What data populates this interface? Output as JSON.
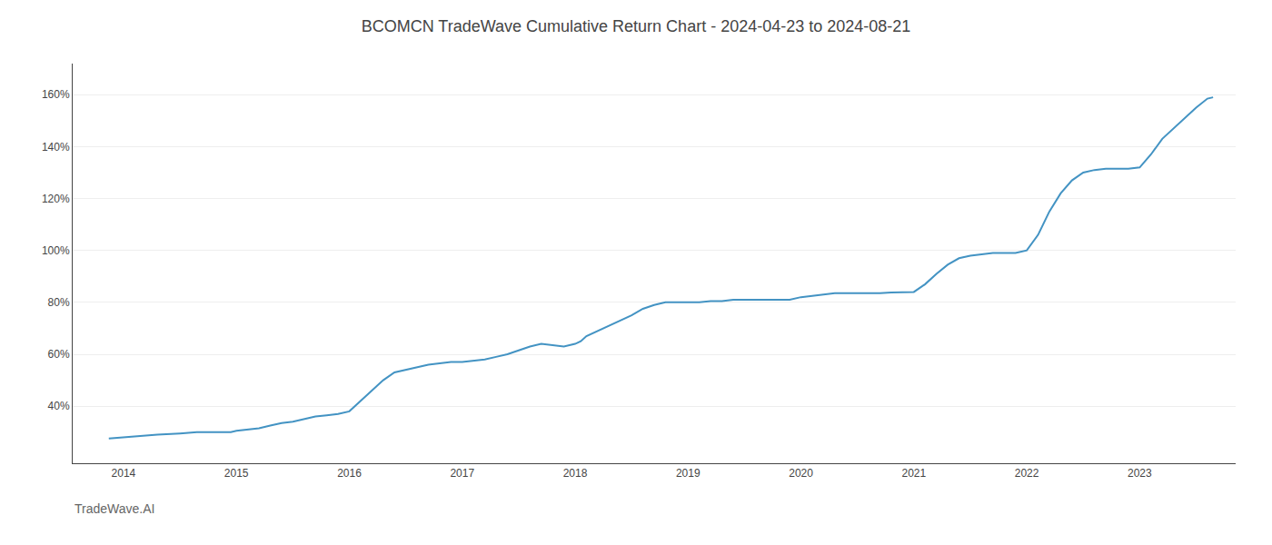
{
  "chart_data": {
    "type": "line",
    "title": "BCOMCN TradeWave Cumulative Return Chart - 2024-04-23 to 2024-08-21",
    "annotations": [
      "TradeWave.AI"
    ],
    "color": "#4393c3",
    "grid": true,
    "x": [
      2013.87,
      2014.0,
      2014.15,
      2014.3,
      2014.5,
      2014.65,
      2014.8,
      2014.95,
      2015.0,
      2015.1,
      2015.2,
      2015.3,
      2015.4,
      2015.5,
      2015.6,
      2015.7,
      2015.8,
      2015.9,
      2016.0,
      2016.1,
      2016.2,
      2016.3,
      2016.4,
      2016.5,
      2016.6,
      2016.7,
      2016.8,
      2016.9,
      2017.0,
      2017.1,
      2017.2,
      2017.3,
      2017.4,
      2017.5,
      2017.6,
      2017.7,
      2017.8,
      2017.9,
      2018.0,
      2018.05,
      2018.1,
      2018.2,
      2018.3,
      2018.4,
      2018.5,
      2018.6,
      2018.7,
      2018.8,
      2018.9,
      2019.0,
      2019.1,
      2019.2,
      2019.3,
      2019.4,
      2019.5,
      2019.6,
      2019.7,
      2019.8,
      2019.9,
      2020.0,
      2020.1,
      2020.2,
      2020.3,
      2020.4,
      2020.5,
      2020.6,
      2020.7,
      2020.8,
      2020.9,
      2021.0,
      2021.1,
      2021.2,
      2021.3,
      2021.4,
      2021.5,
      2021.6,
      2021.7,
      2021.8,
      2021.9,
      2022.0,
      2022.1,
      2022.2,
      2022.3,
      2022.4,
      2022.5,
      2022.6,
      2022.7,
      2022.8,
      2022.9,
      2023.0,
      2023.1,
      2023.2,
      2023.3,
      2023.4,
      2023.5,
      2023.6,
      2023.65
    ],
    "values": [
      27.5,
      28,
      28.5,
      29,
      29.5,
      30,
      30,
      30,
      30.5,
      31,
      31.5,
      32.5,
      33.5,
      34,
      35,
      36,
      36.5,
      37,
      38,
      42,
      46,
      50,
      53,
      54,
      55,
      56,
      56.5,
      57,
      57,
      57.5,
      58,
      59,
      60,
      61.5,
      63,
      64,
      63.5,
      63,
      64,
      65,
      67,
      69,
      71,
      73,
      75,
      77.5,
      79,
      80,
      80,
      80,
      80,
      80.5,
      80.5,
      81,
      81,
      81,
      81,
      81,
      81,
      82,
      82.5,
      83,
      83.5,
      83.5,
      83.5,
      83.5,
      83.5,
      83.8,
      84,
      84,
      87,
      91,
      94.5,
      97,
      98,
      98.5,
      99,
      99,
      99,
      100,
      106,
      115,
      122,
      127,
      130,
      131,
      131.5,
      131.5,
      131.5,
      132,
      137,
      143,
      147,
      151,
      155,
      158.5,
      159
    ],
    "xlim": [
      2013.55,
      2023.85
    ],
    "xticks": [
      2014,
      2015,
      2016,
      2017,
      2018,
      2019,
      2020,
      2021,
      2022,
      2023
    ],
    "ylim": [
      18,
      172
    ],
    "yticks": [
      {
        "value": 40,
        "label": "40%"
      },
      {
        "value": 60,
        "label": "60%"
      },
      {
        "value": 80,
        "label": "80%"
      },
      {
        "value": 100,
        "label": "100%"
      },
      {
        "value": 120,
        "label": "120%"
      },
      {
        "value": 140,
        "label": "140%"
      },
      {
        "value": 160,
        "label": "160%"
      }
    ]
  }
}
